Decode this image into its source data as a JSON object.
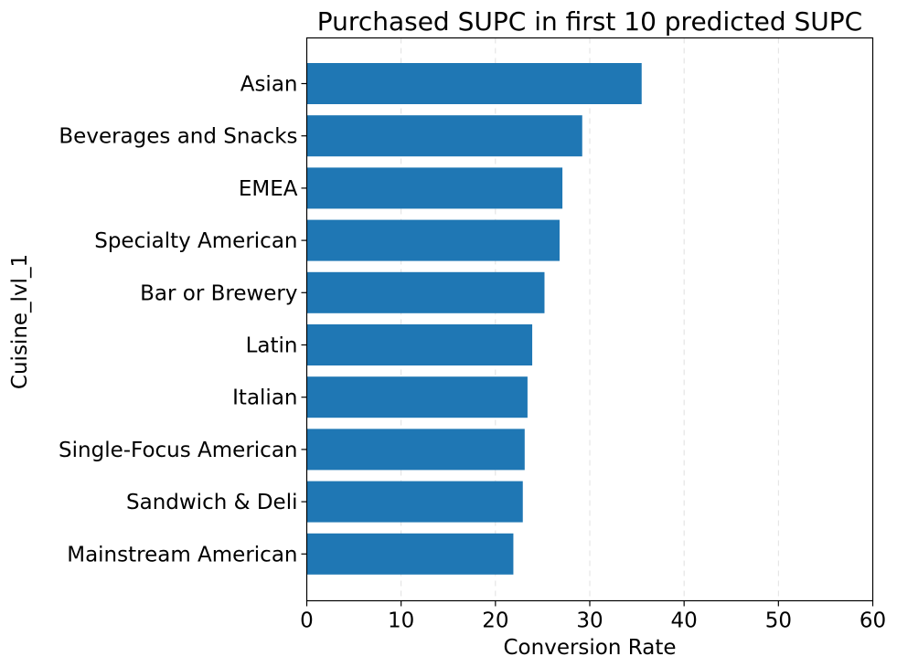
{
  "chart_data": {
    "type": "bar",
    "orientation": "horizontal",
    "title": "Purchased SUPC in first 10 predicted SUPC",
    "xlabel": "Conversion Rate",
    "ylabel": "Cuisine_lvl_1",
    "categories": [
      "Asian",
      "Beverages and Snacks",
      "EMEA",
      "Specialty American",
      "Bar or Brewery",
      "Latin",
      "Italian",
      "Single-Focus American",
      "Sandwich & Deli",
      "Mainstream American"
    ],
    "values": [
      35.5,
      29.2,
      27.1,
      26.8,
      25.2,
      23.9,
      23.4,
      23.1,
      22.9,
      21.9
    ],
    "xlim": [
      0,
      60
    ],
    "xticks": [
      0,
      10,
      20,
      30,
      40,
      50,
      60
    ],
    "grid": "vertical dashed",
    "bar_color": "#1f77b4"
  }
}
